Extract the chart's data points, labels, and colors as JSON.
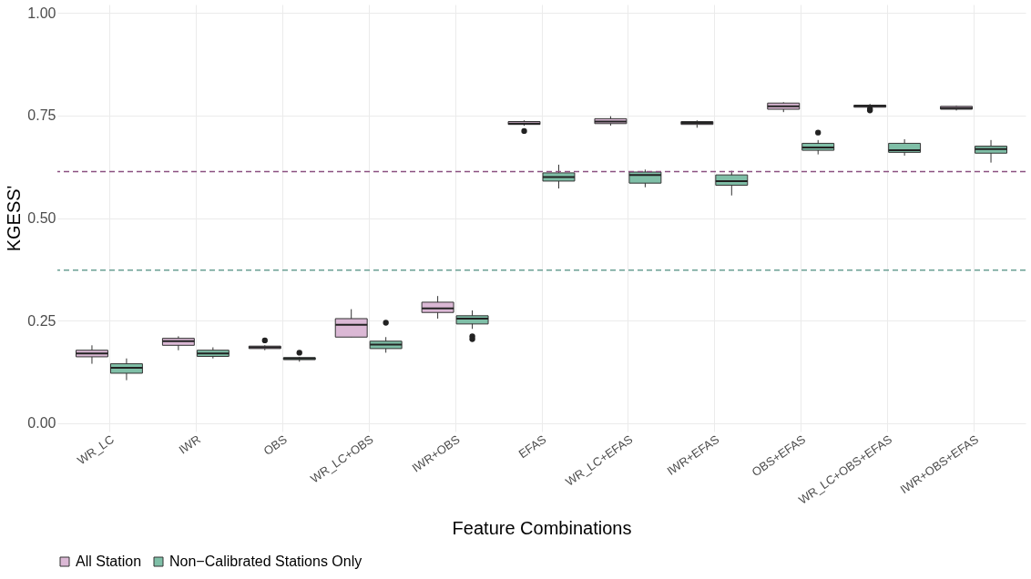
{
  "chart_data": {
    "type": "box",
    "xlabel": "Feature Combinations",
    "ylabel": "KGESS'",
    "categories": [
      "WR_LC",
      "IWR",
      "OBS",
      "WR_LC+OBS",
      "IWR+OBS",
      "EFAS",
      "WR_LC+EFAS",
      "IWR+EFAS",
      "OBS+EFAS",
      "WR_LC+OBS+EFAS",
      "IWR+OBS+EFAS"
    ],
    "series": [
      {
        "name": "All Station",
        "color": "#dbb8d5",
        "boxes": [
          {
            "low": 0.145,
            "q1": 0.162,
            "median": 0.17,
            "q3": 0.178,
            "high": 0.19
          },
          {
            "low": 0.178,
            "q1": 0.19,
            "median": 0.2,
            "q3": 0.207,
            "high": 0.212
          },
          {
            "low": 0.178,
            "q1": 0.182,
            "median": 0.185,
            "q3": 0.188,
            "high": 0.19,
            "outliers": [
              0.202
            ]
          },
          {
            "low": 0.21,
            "q1": 0.21,
            "median": 0.24,
            "q3": 0.255,
            "high": 0.278
          },
          {
            "low": 0.255,
            "q1": 0.27,
            "median": 0.28,
            "q3": 0.295,
            "high": 0.31
          },
          {
            "low": 0.725,
            "q1": 0.728,
            "median": 0.73,
            "q3": 0.735,
            "high": 0.738,
            "outliers": [
              0.712
            ]
          },
          {
            "low": 0.725,
            "q1": 0.73,
            "median": 0.735,
            "q3": 0.742,
            "high": 0.748
          },
          {
            "low": 0.72,
            "q1": 0.728,
            "median": 0.732,
            "q3": 0.735,
            "high": 0.738
          },
          {
            "low": 0.758,
            "q1": 0.765,
            "median": 0.772,
            "q3": 0.78,
            "high": 0.782
          },
          {
            "low": 0.768,
            "q1": 0.77,
            "median": 0.773,
            "q3": 0.775,
            "high": 0.778,
            "outliers": [
              0.762,
              0.766
            ]
          },
          {
            "low": 0.762,
            "q1": 0.765,
            "median": 0.768,
            "q3": 0.772,
            "high": 0.774
          }
        ]
      },
      {
        "name": "Non−Calibrated Stations Only",
        "color": "#7fbfa7",
        "boxes": [
          {
            "low": 0.105,
            "q1": 0.122,
            "median": 0.135,
            "q3": 0.145,
            "high": 0.158
          },
          {
            "low": 0.158,
            "q1": 0.163,
            "median": 0.17,
            "q3": 0.178,
            "high": 0.185
          },
          {
            "low": 0.15,
            "q1": 0.155,
            "median": 0.158,
            "q3": 0.16,
            "high": 0.162,
            "outliers": [
              0.172
            ]
          },
          {
            "low": 0.172,
            "q1": 0.182,
            "median": 0.192,
            "q3": 0.2,
            "high": 0.21,
            "outliers": [
              0.245
            ]
          },
          {
            "low": 0.23,
            "q1": 0.242,
            "median": 0.255,
            "q3": 0.262,
            "high": 0.275,
            "outliers": [
              0.205,
              0.212
            ]
          },
          {
            "low": 0.572,
            "q1": 0.59,
            "median": 0.6,
            "q3": 0.61,
            "high": 0.63
          },
          {
            "low": 0.575,
            "q1": 0.585,
            "median": 0.605,
            "q3": 0.612,
            "high": 0.618
          },
          {
            "low": 0.555,
            "q1": 0.58,
            "median": 0.59,
            "q3": 0.605,
            "high": 0.615
          },
          {
            "low": 0.655,
            "q1": 0.665,
            "median": 0.672,
            "q3": 0.682,
            "high": 0.69,
            "outliers": [
              0.708
            ]
          },
          {
            "low": 0.652,
            "q1": 0.66,
            "median": 0.665,
            "q3": 0.682,
            "high": 0.692
          },
          {
            "low": 0.635,
            "q1": 0.658,
            "median": 0.668,
            "q3": 0.675,
            "high": 0.69
          }
        ]
      }
    ],
    "ref_lines": [
      {
        "axis": "y",
        "value": 0.613,
        "color": "#8a4f80",
        "line_style": "dashed"
      },
      {
        "axis": "y",
        "value": 0.373,
        "color": "#6a9f93",
        "line_style": "dashed"
      }
    ],
    "ylim": [
      -0.02,
      1.02
    ],
    "yticks": [
      {
        "value": 0,
        "label": "0.00"
      },
      {
        "value": 0.25,
        "label": "0.25"
      },
      {
        "value": 0.5,
        "label": "0.50"
      },
      {
        "value": 0.75,
        "label": "0.75"
      },
      {
        "value": 1,
        "label": "1.00"
      }
    ],
    "grid": true,
    "legend": "bottom"
  }
}
